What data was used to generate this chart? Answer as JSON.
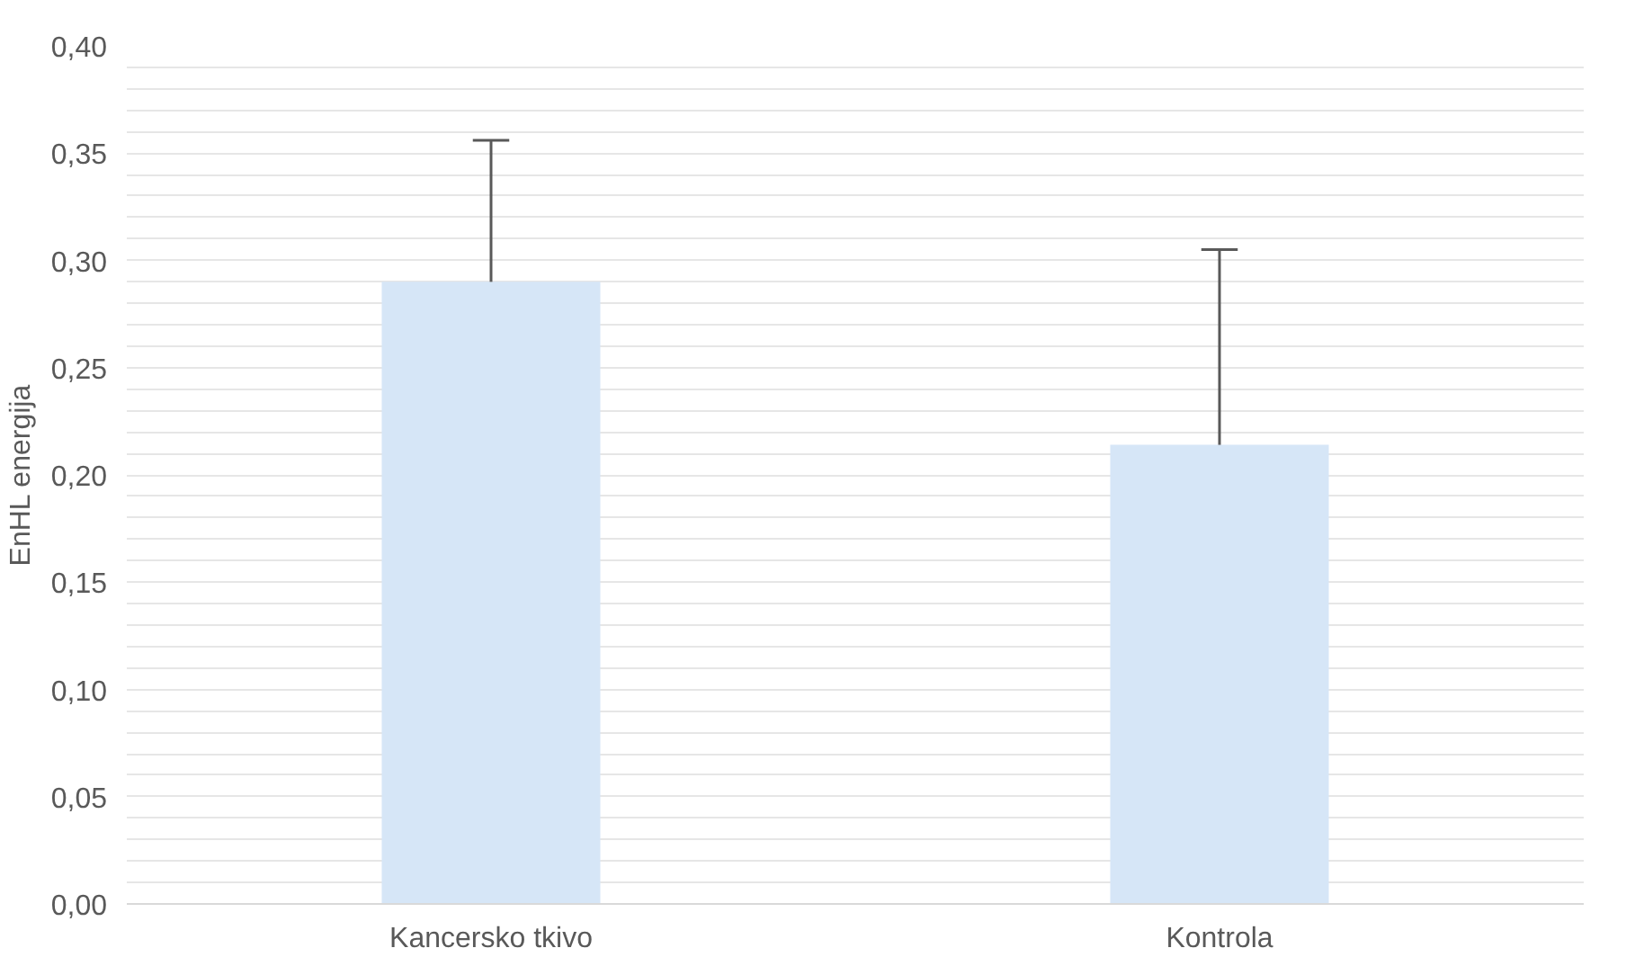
{
  "chart_data": {
    "type": "bar",
    "ylabel": "EnHL energija",
    "categories": [
      "Kancersko tkivo",
      "Kontrola"
    ],
    "values": [
      0.29,
      0.214
    ],
    "errors": [
      [
        0.29,
        0.356
      ],
      [
        0.214,
        0.305
      ]
    ],
    "color": "#d6e6f7",
    "ylim": [
      0,
      0.4
    ],
    "yticks": [
      {
        "value": 0,
        "label": "0,00"
      },
      {
        "value": 0.01,
        "label": null
      },
      {
        "value": 0.02,
        "label": null
      },
      {
        "value": 0.03,
        "label": null
      },
      {
        "value": 0.04,
        "label": null
      },
      {
        "value": 0.05,
        "label": "0,05"
      },
      {
        "value": 0.06,
        "label": null
      },
      {
        "value": 0.07,
        "label": null
      },
      {
        "value": 0.08,
        "label": null
      },
      {
        "value": 0.09,
        "label": null
      },
      {
        "value": 0.1,
        "label": "0,10"
      },
      {
        "value": 0.11,
        "label": null
      },
      {
        "value": 0.12,
        "label": null
      },
      {
        "value": 0.13,
        "label": null
      },
      {
        "value": 0.14,
        "label": null
      },
      {
        "value": 0.15,
        "label": "0,15"
      },
      {
        "value": 0.16,
        "label": null
      },
      {
        "value": 0.17,
        "label": null
      },
      {
        "value": 0.18,
        "label": null
      },
      {
        "value": 0.19,
        "label": null
      },
      {
        "value": 0.2,
        "label": "0,20"
      },
      {
        "value": 0.21,
        "label": null
      },
      {
        "value": 0.22,
        "label": null
      },
      {
        "value": 0.23,
        "label": null
      },
      {
        "value": 0.24,
        "label": null
      },
      {
        "value": 0.25,
        "label": "0,25"
      },
      {
        "value": 0.26,
        "label": null
      },
      {
        "value": 0.27,
        "label": null
      },
      {
        "value": 0.28,
        "label": null
      },
      {
        "value": 0.29,
        "label": null
      },
      {
        "value": 0.3,
        "label": "0,30"
      },
      {
        "value": 0.31,
        "label": null
      },
      {
        "value": 0.32,
        "label": null
      },
      {
        "value": 0.33,
        "label": null
      },
      {
        "value": 0.34,
        "label": null
      },
      {
        "value": 0.35,
        "label": "0,35"
      },
      {
        "value": 0.36,
        "label": null
      },
      {
        "value": 0.37,
        "label": null
      },
      {
        "value": 0.38,
        "label": null
      },
      {
        "value": 0.39,
        "label": null
      },
      {
        "value": 0.4,
        "label": "0,40"
      }
    ],
    "grid": "y"
  }
}
